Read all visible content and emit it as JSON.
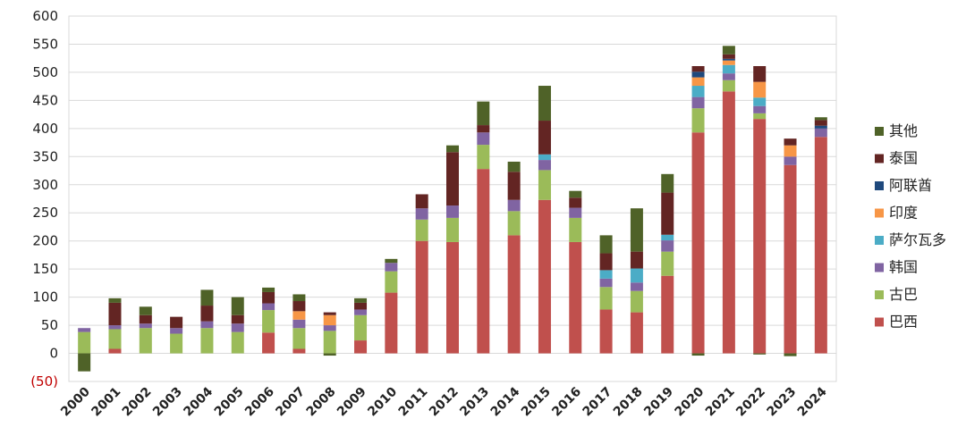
{
  "chart_data": {
    "type": "bar",
    "stacked": true,
    "title": "",
    "xlabel": "",
    "ylabel": "",
    "ylim": [
      -50,
      600
    ],
    "yticks": [
      -50,
      0,
      50,
      100,
      150,
      200,
      250,
      300,
      350,
      400,
      450,
      500,
      550,
      600
    ],
    "ytick_labels": [
      "(50)",
      "0",
      "50",
      "100",
      "150",
      "200",
      "250",
      "300",
      "350",
      "400",
      "450",
      "500",
      "550",
      "600"
    ],
    "grid": "horizontal",
    "legend_position": "right",
    "categories": [
      "2000",
      "2001",
      "2002",
      "2003",
      "2004",
      "2005",
      "2006",
      "2007",
      "2008",
      "2009",
      "2010",
      "2011",
      "2012",
      "2013",
      "2014",
      "2015",
      "2016",
      "2017",
      "2018",
      "2019",
      "2020",
      "2021",
      "2022",
      "2023",
      "2024"
    ],
    "series": [
      {
        "name": "巴西",
        "color": "#c0504d",
        "values": [
          0,
          8,
          0,
          0,
          0,
          0,
          37,
          8,
          0,
          23,
          108,
          200,
          198,
          328,
          210,
          273,
          198,
          78,
          73,
          138,
          393,
          466,
          417,
          335,
          385
        ]
      },
      {
        "name": "古巴",
        "color": "#9bbb59",
        "values": [
          38,
          35,
          45,
          35,
          45,
          38,
          40,
          37,
          40,
          45,
          38,
          38,
          43,
          43,
          43,
          53,
          43,
          40,
          38,
          43,
          43,
          20,
          10,
          0,
          0
        ]
      },
      {
        "name": "韩国",
        "color": "#8064a2",
        "values": [
          7,
          7,
          8,
          10,
          12,
          15,
          12,
          15,
          10,
          10,
          15,
          20,
          22,
          22,
          20,
          18,
          18,
          15,
          15,
          20,
          20,
          12,
          13,
          15,
          15
        ]
      },
      {
        "name": "萨尔瓦多",
        "color": "#4bacc6",
        "values": [
          0,
          0,
          0,
          0,
          0,
          0,
          0,
          0,
          0,
          0,
          0,
          0,
          0,
          0,
          0,
          10,
          0,
          15,
          25,
          10,
          20,
          15,
          15,
          0,
          0
        ]
      },
      {
        "name": "印度",
        "color": "#f79646",
        "values": [
          0,
          0,
          0,
          0,
          0,
          0,
          0,
          15,
          18,
          0,
          0,
          0,
          0,
          0,
          0,
          0,
          0,
          0,
          0,
          0,
          15,
          8,
          28,
          20,
          0
        ]
      },
      {
        "name": "阿联酋",
        "color": "#1f497d",
        "values": [
          0,
          0,
          0,
          0,
          0,
          0,
          0,
          0,
          0,
          0,
          0,
          0,
          0,
          0,
          0,
          0,
          0,
          0,
          0,
          0,
          10,
          3,
          0,
          0,
          5
        ]
      },
      {
        "name": "泰国",
        "color": "#632523",
        "values": [
          0,
          40,
          15,
          20,
          28,
          15,
          20,
          18,
          5,
          12,
          0,
          25,
          95,
          13,
          50,
          60,
          18,
          30,
          30,
          75,
          10,
          8,
          28,
          12,
          10
        ]
      },
      {
        "name": "其他",
        "color": "#4f6228",
        "values": [
          -32,
          8,
          15,
          0,
          28,
          32,
          8,
          12,
          -4,
          8,
          7,
          0,
          12,
          42,
          18,
          62,
          12,
          32,
          77,
          33,
          -4,
          15,
          -2,
          -5,
          5
        ]
      }
    ]
  }
}
